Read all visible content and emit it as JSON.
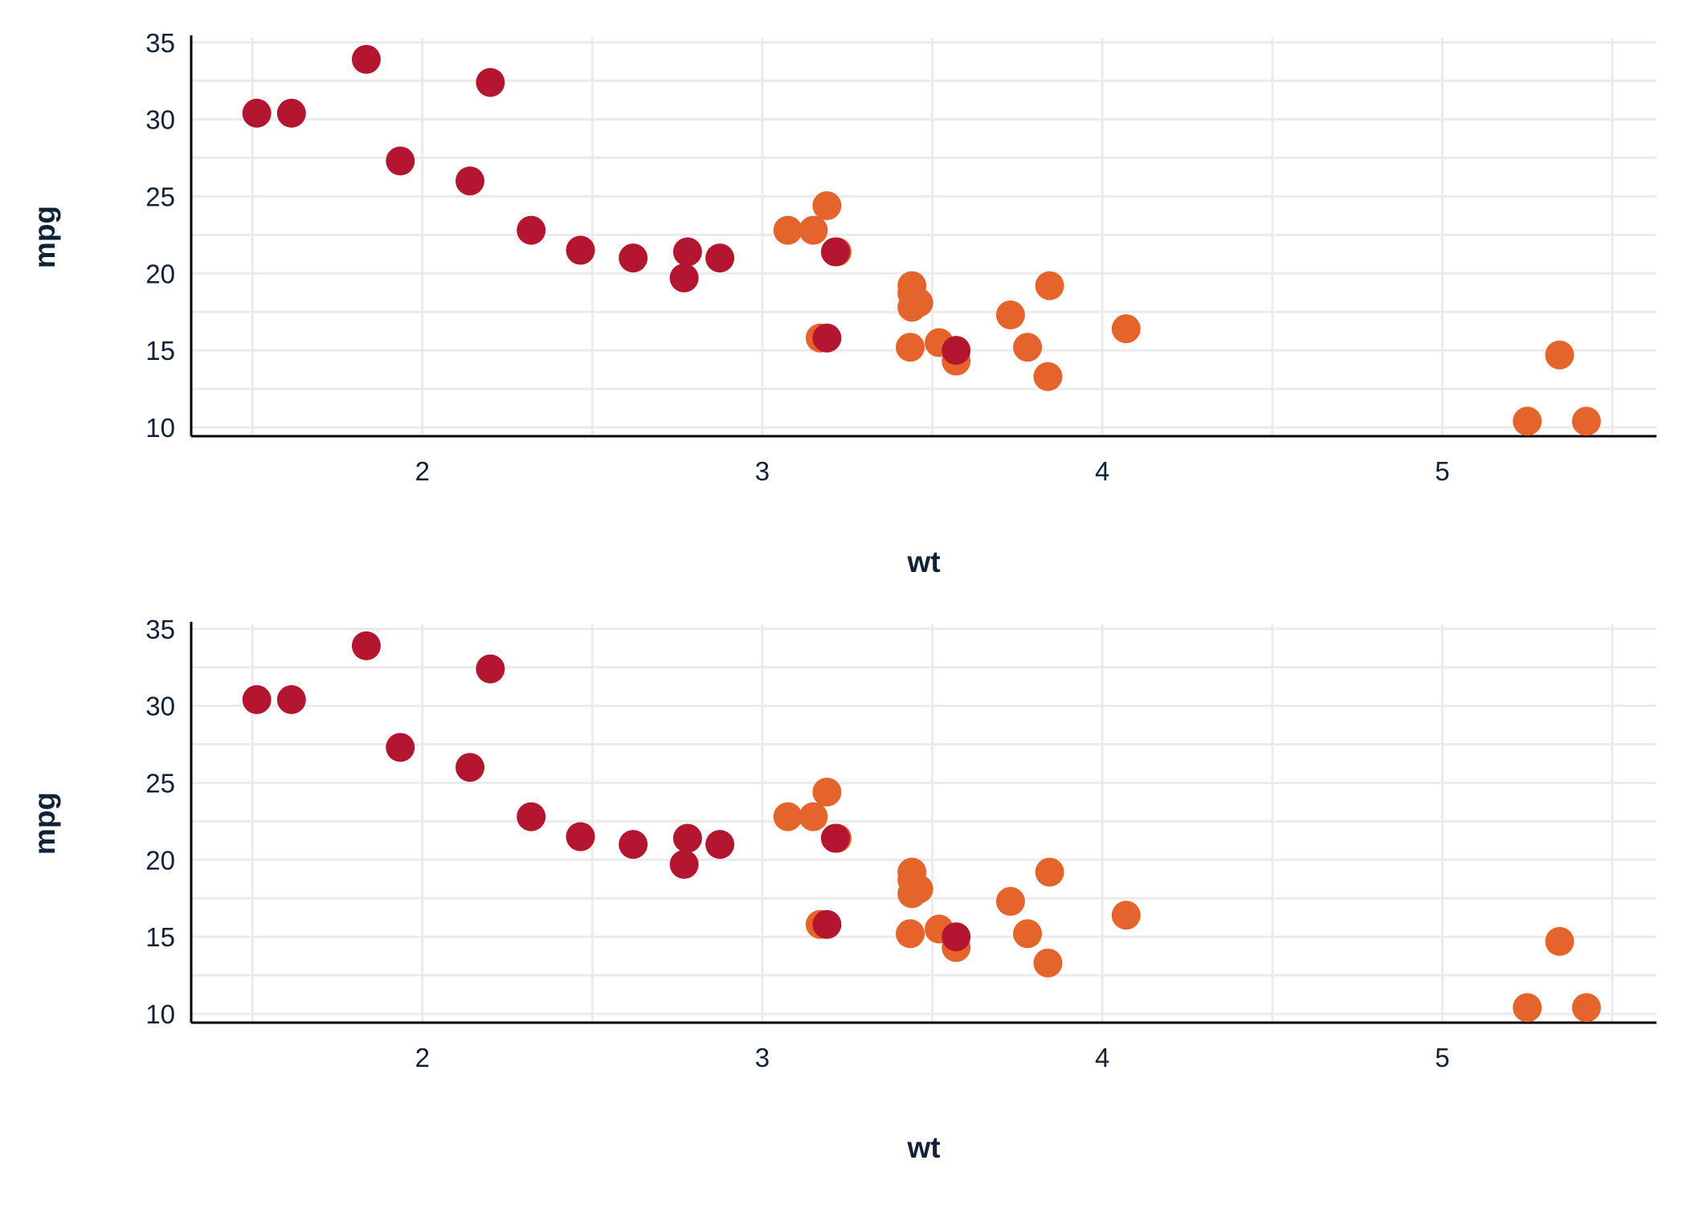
{
  "chart_data": [
    {
      "type": "scatter",
      "xlabel": "wt",
      "ylabel": "mpg",
      "xlim": [
        1.32,
        5.63
      ],
      "ylim": [
        9.425,
        35.3
      ],
      "x_ticks": [
        2,
        3,
        4,
        5
      ],
      "y_ticks": [
        10,
        15,
        20,
        25,
        30,
        35
      ],
      "grid": true,
      "colors": {
        "series_a": "#b5162f",
        "series_b": "#e4642c",
        "axis": "#000000",
        "grid": "#ebebeb",
        "text": "#0f2236"
      },
      "series": [
        {
          "color_key": "series_a",
          "x": [
            2.62,
            2.875,
            2.32,
            3.19,
            3.57,
            2.2,
            1.615,
            1.835,
            2.465,
            1.935,
            2.14,
            1.513,
            2.77,
            2.78,
            3.215
          ],
          "y": [
            21.0,
            21.0,
            22.8,
            15.8,
            15.0,
            32.4,
            30.4,
            33.9,
            21.5,
            27.3,
            26.0,
            30.4,
            19.7,
            21.4,
            21.4
          ]
        },
        {
          "color_key": "series_b",
          "x": [
            3.215,
            3.44,
            3.46,
            3.57,
            3.19,
            3.15,
            3.44,
            3.44,
            4.07,
            3.73,
            3.78,
            5.25,
            5.424,
            5.345,
            3.52,
            3.435,
            3.84,
            3.845,
            2.465,
            3.17,
            3.22,
            3.075
          ],
          "y": [
            21.4,
            18.7,
            18.1,
            14.3,
            24.4,
            22.8,
            19.2,
            17.8,
            16.4,
            17.3,
            15.2,
            10.4,
            10.4,
            14.7,
            15.5,
            15.2,
            13.3,
            19.2,
            21.5,
            15.8,
            21.4,
            22.8
          ]
        }
      ]
    },
    {
      "type": "scatter",
      "xlabel": "wt",
      "ylabel": "mpg",
      "xlim": [
        1.32,
        5.63
      ],
      "ylim": [
        9.425,
        35.3
      ],
      "x_ticks": [
        2,
        3,
        4,
        5
      ],
      "y_ticks": [
        10,
        15,
        20,
        25,
        30,
        35
      ],
      "grid": true,
      "colors": {
        "series_a": "#b5162f",
        "series_b": "#e4642c",
        "axis": "#000000",
        "grid": "#ebebeb",
        "text": "#0f2236"
      },
      "series": [
        {
          "color_key": "series_a",
          "x": [
            2.62,
            2.875,
            2.32,
            3.19,
            3.57,
            2.2,
            1.615,
            1.835,
            2.465,
            1.935,
            2.14,
            1.513,
            2.77,
            2.78,
            3.215
          ],
          "y": [
            21.0,
            21.0,
            22.8,
            15.8,
            15.0,
            32.4,
            30.4,
            33.9,
            21.5,
            27.3,
            26.0,
            30.4,
            19.7,
            21.4,
            21.4
          ]
        },
        {
          "color_key": "series_b",
          "x": [
            3.215,
            3.44,
            3.46,
            3.57,
            3.19,
            3.15,
            3.44,
            3.44,
            4.07,
            3.73,
            3.78,
            5.25,
            5.424,
            5.345,
            3.52,
            3.435,
            3.84,
            3.845,
            2.465,
            3.17,
            3.22,
            3.075
          ],
          "y": [
            21.4,
            18.7,
            18.1,
            14.3,
            24.4,
            22.8,
            19.2,
            17.8,
            16.4,
            17.3,
            15.2,
            10.4,
            10.4,
            14.7,
            15.5,
            15.2,
            13.3,
            19.2,
            21.5,
            15.8,
            21.4,
            22.8
          ]
        }
      ]
    }
  ]
}
